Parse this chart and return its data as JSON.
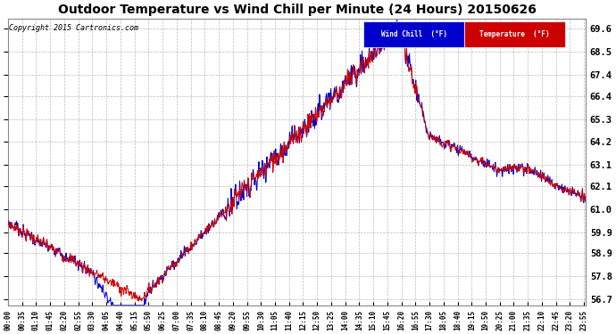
{
  "title": "Outdoor Temperature vs Wind Chill per Minute (24 Hours) 20150626",
  "copyright": "Copyright 2015 Cartronics.com",
  "ylabel_right_ticks": [
    56.7,
    57.8,
    58.9,
    59.9,
    61.0,
    62.1,
    63.1,
    64.2,
    65.3,
    66.4,
    67.4,
    68.5,
    69.6
  ],
  "ylim": [
    56.4,
    70.1
  ],
  "bg_color": "#ffffff",
  "plot_bg_color": "#ffffff",
  "grid_color": "#aaaaaa",
  "temp_color": "#cc0000",
  "windchill_color": "#0000cc",
  "title_color": "#000000",
  "copyright_color": "#000000",
  "legend_windchill_bg": "#0000cc",
  "legend_temp_bg": "#cc0000",
  "x_tick_labels": [
    "00:00",
    "00:35",
    "01:10",
    "01:45",
    "02:20",
    "02:55",
    "03:30",
    "04:05",
    "04:40",
    "05:15",
    "05:50",
    "06:25",
    "07:00",
    "07:35",
    "08:10",
    "08:45",
    "09:20",
    "09:55",
    "10:30",
    "11:05",
    "11:40",
    "12:15",
    "12:50",
    "13:25",
    "14:00",
    "14:35",
    "15:10",
    "15:45",
    "16:20",
    "16:55",
    "17:30",
    "18:05",
    "18:40",
    "19:15",
    "19:50",
    "20:25",
    "21:00",
    "21:35",
    "22:10",
    "22:45",
    "23:20",
    "23:55"
  ],
  "n_minutes": 1440,
  "noise_std_temp": 0.25,
  "noise_std_wc": 0.3
}
